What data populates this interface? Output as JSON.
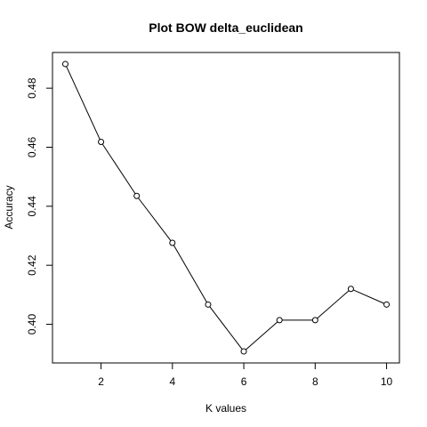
{
  "chart_data": {
    "type": "line",
    "title": "Plot BOW delta_euclidean",
    "xlabel": "K values",
    "ylabel": "Accuracy",
    "x": [
      1,
      2,
      3,
      4,
      5,
      6,
      7,
      8,
      9,
      10
    ],
    "series": [
      {
        "values": [
          0.4882,
          0.4618,
          0.4435,
          0.4276,
          0.4067,
          0.3908,
          0.4014,
          0.4014,
          0.412,
          0.4067
        ]
      }
    ],
    "xlim": [
      0.64,
      10.36
    ],
    "ylim": [
      0.3869,
      0.4921
    ],
    "xticks": [
      2,
      4,
      6,
      8,
      10
    ],
    "xtick_labels": [
      "2",
      "4",
      "6",
      "8",
      "10"
    ],
    "yticks": [
      0.4,
      0.42,
      0.44,
      0.46,
      0.48
    ],
    "ytick_labels": [
      "0.40",
      "0.42",
      "0.44",
      "0.46",
      "0.48"
    ],
    "grid": false,
    "marker": "open-circle",
    "line_color": "#000000"
  }
}
